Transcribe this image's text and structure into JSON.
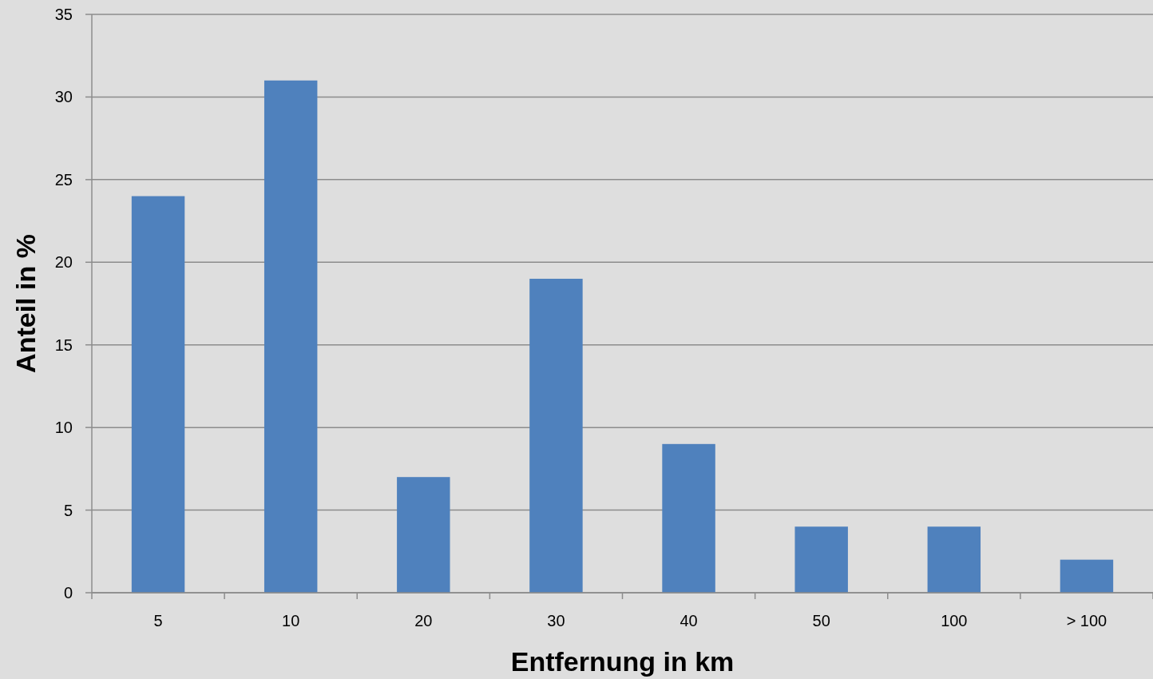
{
  "chart_data": {
    "type": "bar",
    "xlabel": "Entfernung in km",
    "ylabel": "Anteil in %",
    "categories": [
      "5",
      "10",
      "20",
      "30",
      "40",
      "50",
      "100",
      "> 100"
    ],
    "values": [
      24,
      31,
      7,
      19,
      9,
      4,
      4,
      2
    ],
    "color": "#4f81bd",
    "ylim": [
      0,
      35
    ],
    "yticks": [
      0,
      5,
      10,
      15,
      20,
      25,
      30,
      35
    ],
    "grid": "y"
  }
}
